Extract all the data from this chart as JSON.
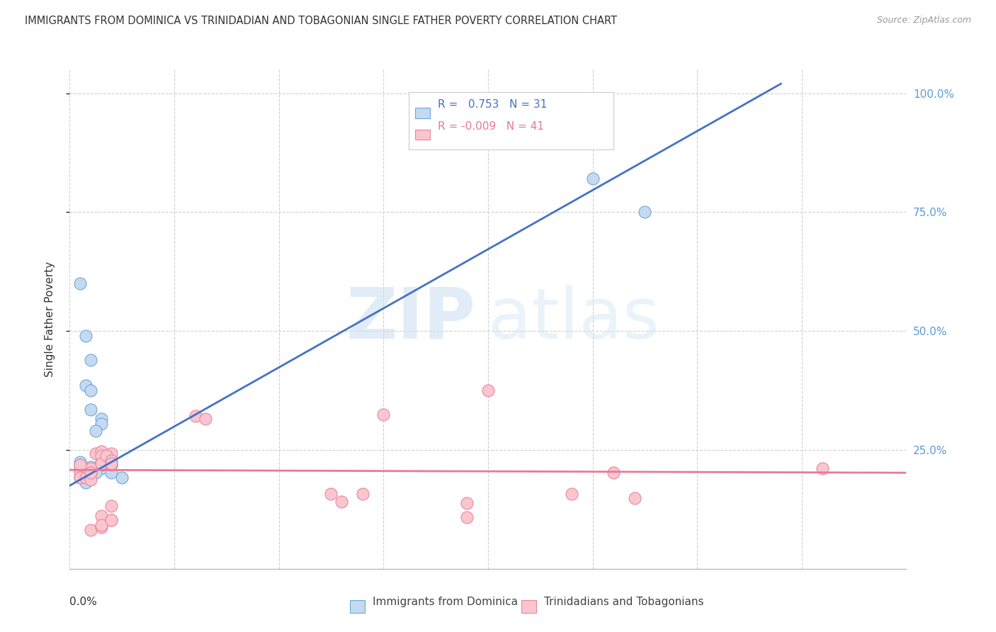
{
  "title": "IMMIGRANTS FROM DOMINICA VS TRINIDADIAN AND TOBAGONIAN SINGLE FATHER POVERTY CORRELATION CHART",
  "source": "Source: ZipAtlas.com",
  "ylabel": "Single Father Poverty",
  "right_yticks": [
    "100.0%",
    "75.0%",
    "50.0%",
    "25.0%"
  ],
  "right_ytick_vals": [
    1.0,
    0.75,
    0.5,
    0.25
  ],
  "legend_blue_label": "Immigrants from Dominica",
  "legend_pink_label": "Trinidadians and Tobagonians",
  "legend_r_blue": "R =   0.753",
  "legend_n_blue": "N = 31",
  "legend_r_pink": "R = -0.009",
  "legend_n_pink": "N = 41",
  "blue_color": "#c5d9f0",
  "blue_edge_color": "#6fa8d8",
  "blue_line_color": "#4472c4",
  "pink_color": "#f9c6d0",
  "pink_edge_color": "#e8879a",
  "pink_line_color": "#e8799a",
  "blue_dots": [
    [
      0.001,
      0.205
    ],
    [
      0.001,
      0.225
    ],
    [
      0.0015,
      0.198
    ],
    [
      0.002,
      0.212
    ],
    [
      0.002,
      0.2
    ],
    [
      0.002,
      0.215
    ],
    [
      0.001,
      0.218
    ],
    [
      0.001,
      0.192
    ],
    [
      0.0015,
      0.182
    ],
    [
      0.002,
      0.192
    ],
    [
      0.002,
      0.192
    ],
    [
      0.003,
      0.212
    ],
    [
      0.003,
      0.218
    ],
    [
      0.0025,
      0.202
    ],
    [
      0.002,
      0.202
    ],
    [
      0.004,
      0.218
    ],
    [
      0.004,
      0.202
    ],
    [
      0.005,
      0.192
    ],
    [
      0.001,
      0.6
    ],
    [
      0.0015,
      0.49
    ],
    [
      0.002,
      0.44
    ],
    [
      0.0015,
      0.385
    ],
    [
      0.002,
      0.375
    ],
    [
      0.002,
      0.335
    ],
    [
      0.003,
      0.315
    ],
    [
      0.003,
      0.305
    ],
    [
      0.003,
      0.225
    ],
    [
      0.0025,
      0.29
    ],
    [
      0.05,
      0.82
    ],
    [
      0.055,
      0.75
    ],
    [
      0.038,
      0.92
    ]
  ],
  "pink_dots": [
    [
      0.001,
      0.212
    ],
    [
      0.001,
      0.202
    ],
    [
      0.0015,
      0.197
    ],
    [
      0.002,
      0.207
    ],
    [
      0.002,
      0.212
    ],
    [
      0.002,
      0.202
    ],
    [
      0.001,
      0.192
    ],
    [
      0.0015,
      0.192
    ],
    [
      0.002,
      0.188
    ],
    [
      0.002,
      0.202
    ],
    [
      0.001,
      0.218
    ],
    [
      0.0025,
      0.242
    ],
    [
      0.003,
      0.247
    ],
    [
      0.003,
      0.238
    ],
    [
      0.004,
      0.222
    ],
    [
      0.003,
      0.222
    ],
    [
      0.004,
      0.242
    ],
    [
      0.0035,
      0.238
    ],
    [
      0.004,
      0.228
    ],
    [
      0.004,
      0.218
    ],
    [
      0.004,
      0.222
    ],
    [
      0.002,
      0.082
    ],
    [
      0.003,
      0.112
    ],
    [
      0.003,
      0.088
    ],
    [
      0.004,
      0.102
    ],
    [
      0.003,
      0.092
    ],
    [
      0.004,
      0.102
    ],
    [
      0.004,
      0.132
    ],
    [
      0.012,
      0.322
    ],
    [
      0.013,
      0.315
    ],
    [
      0.025,
      0.158
    ],
    [
      0.026,
      0.142
    ],
    [
      0.028,
      0.158
    ],
    [
      0.03,
      0.325
    ],
    [
      0.038,
      0.138
    ],
    [
      0.038,
      0.108
    ],
    [
      0.04,
      0.375
    ],
    [
      0.048,
      0.158
    ],
    [
      0.052,
      0.202
    ],
    [
      0.054,
      0.148
    ],
    [
      0.072,
      0.212
    ]
  ],
  "xmin": 0.0,
  "xmax": 0.08,
  "ymin": 0.0,
  "ymax": 1.05,
  "blue_line_x": [
    0.0,
    0.068
  ],
  "blue_line_y": [
    0.175,
    1.02
  ],
  "pink_line_x": [
    0.0,
    0.08
  ],
  "pink_line_y": [
    0.208,
    0.202
  ]
}
